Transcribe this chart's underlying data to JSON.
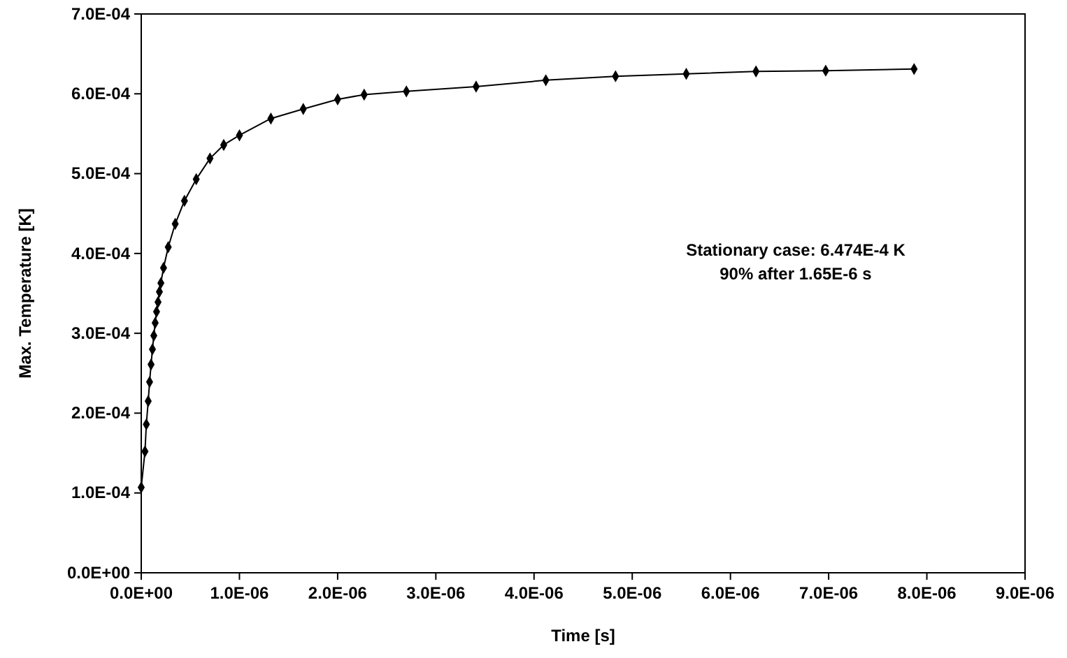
{
  "chart_data": {
    "type": "line",
    "xlabel": "Time [s]",
    "ylabel": "Max. Temperature  [K]",
    "x": [
      0,
      3.8e-08,
      5.2e-08,
      7.1e-08,
      8.5e-08,
      1e-07,
      1.14e-07,
      1.28e-07,
      1.42e-07,
      1.56e-07,
      1.71e-07,
      1.85e-07,
      2e-07,
      2.27e-07,
      2.75e-07,
      3.46e-07,
      4.4e-07,
      5.6e-07,
      7e-07,
      8.4e-07,
      1e-06,
      1.32e-06,
      1.65e-06,
      2e-06,
      2.27e-06,
      2.7e-06,
      3.41e-06,
      4.12e-06,
      4.83e-06,
      5.55e-06,
      6.26e-06,
      6.97e-06,
      7.87e-06
    ],
    "series": [
      {
        "color": "#000000",
        "values": [
          0.000107,
          0.000152,
          0.000186,
          0.000215,
          0.000239,
          0.000261,
          0.00028,
          0.000297,
          0.000313,
          0.000327,
          0.000339,
          0.000352,
          0.000363,
          0.000382,
          0.000408,
          0.000437,
          0.000466,
          0.000493,
          0.000519,
          0.000536,
          0.000548,
          0.000569,
          0.000581,
          0.000593,
          0.000599,
          0.000603,
          0.000609,
          0.000617,
          0.000622,
          0.000625,
          0.000628,
          0.000629,
          0.000631
        ]
      }
    ],
    "xlim": [
      0,
      9e-06
    ],
    "xticks": [
      {
        "value": 0,
        "label": "0.0E+00"
      },
      {
        "value": 1e-06,
        "label": "1.0E-06"
      },
      {
        "value": 2e-06,
        "label": "2.0E-06"
      },
      {
        "value": 3e-06,
        "label": "3.0E-06"
      },
      {
        "value": 4e-06,
        "label": "4.0E-06"
      },
      {
        "value": 5e-06,
        "label": "5.0E-06"
      },
      {
        "value": 6e-06,
        "label": "6.0E-06"
      },
      {
        "value": 7e-06,
        "label": "7.0E-06"
      },
      {
        "value": 8e-06,
        "label": "8.0E-06"
      },
      {
        "value": 9e-06,
        "label": "9.0E-06"
      }
    ],
    "ylim": [
      0,
      0.0007
    ],
    "yticks": [
      {
        "value": 0,
        "label": "0.0E+00"
      },
      {
        "value": 0.0001,
        "label": "1.0E-04"
      },
      {
        "value": 0.0002,
        "label": "2.0E-04"
      },
      {
        "value": 0.0003,
        "label": "3.0E-04"
      },
      {
        "value": 0.0004,
        "label": "4.0E-04"
      },
      {
        "value": 0.0005,
        "label": "5.0E-04"
      },
      {
        "value": 0.0006,
        "label": "6.0E-04"
      },
      {
        "value": 0.0007,
        "label": "7.0E-04"
      }
    ],
    "marker": "diamond",
    "annotations": [
      "Stationary case: 6.474E-4 K",
      "90% after 1.65E-6 s"
    ]
  }
}
